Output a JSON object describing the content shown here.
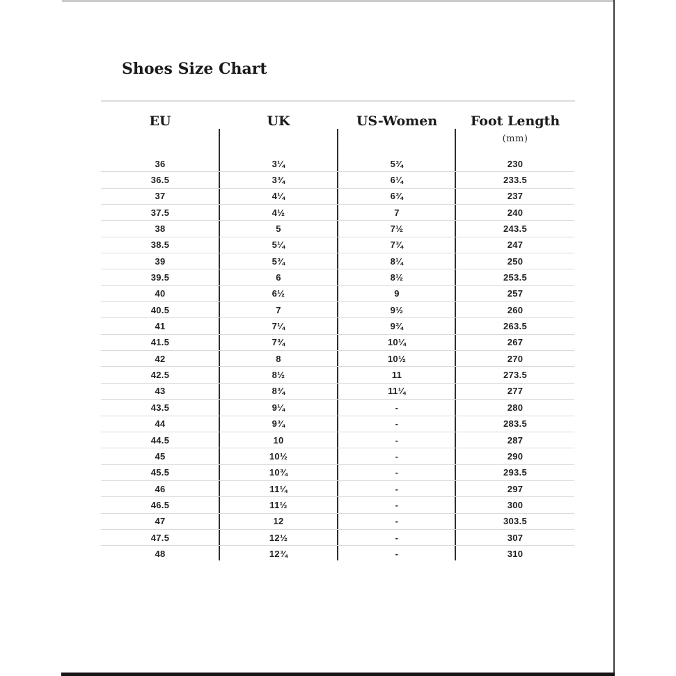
{
  "page_title": "Shoes Size Chart",
  "header": {
    "eu": "EU",
    "uk": "UK",
    "us_women": "US-Women",
    "foot_length": "Foot Length",
    "unit": "(mm)"
  },
  "chart_data": {
    "type": "table",
    "title": "Shoes Size Chart",
    "columns": [
      "EU",
      "UK",
      "US-Women",
      "Foot Length (mm)"
    ],
    "rows": [
      [
        "36",
        "3¼",
        "5¾",
        "230"
      ],
      [
        "36.5",
        "3¾",
        "6¼",
        "233.5"
      ],
      [
        "37",
        "4¼",
        "6¾",
        "237"
      ],
      [
        "37.5",
        "4½",
        "7",
        "240"
      ],
      [
        "38",
        "5",
        "7½",
        "243.5"
      ],
      [
        "38.5",
        "5¼",
        "7¾",
        "247"
      ],
      [
        "39",
        "5¾",
        "8¼",
        "250"
      ],
      [
        "39.5",
        "6",
        "8½",
        "253.5"
      ],
      [
        "40",
        "6½",
        "9",
        "257"
      ],
      [
        "40.5",
        "7",
        "9½",
        "260"
      ],
      [
        "41",
        "7¼",
        "9¾",
        "263.5"
      ],
      [
        "41.5",
        "7¾",
        "10¼",
        "267"
      ],
      [
        "42",
        "8",
        "10½",
        "270"
      ],
      [
        "42.5",
        "8½",
        "11",
        "273.5"
      ],
      [
        "43",
        "8¾",
        "11¼",
        "277"
      ],
      [
        "43.5",
        "9¼",
        "-",
        "280"
      ],
      [
        "44",
        "9¾",
        "-",
        "283.5"
      ],
      [
        "44.5",
        "10",
        "-",
        "287"
      ],
      [
        "45",
        "10½",
        "-",
        "290"
      ],
      [
        "45.5",
        "10¾",
        "-",
        "293.5"
      ],
      [
        "46",
        "11¼",
        "-",
        "297"
      ],
      [
        "46.5",
        "11½",
        "-",
        "300"
      ],
      [
        "47",
        "12",
        "-",
        "303.5"
      ],
      [
        "47.5",
        "12½",
        "-",
        "307"
      ],
      [
        "48",
        "12¾",
        "-",
        "310"
      ]
    ]
  },
  "colors": {
    "background": "#ffffff",
    "text": "#1b1b1b",
    "row_separator": "#dadada",
    "column_separator": "#2e2e2e",
    "title_divider": "#dcdcdc",
    "photo_edge_top": "#cbcbcb",
    "photo_edge_right": "#3b3b3b",
    "photo_edge_bottom": "#141414"
  }
}
